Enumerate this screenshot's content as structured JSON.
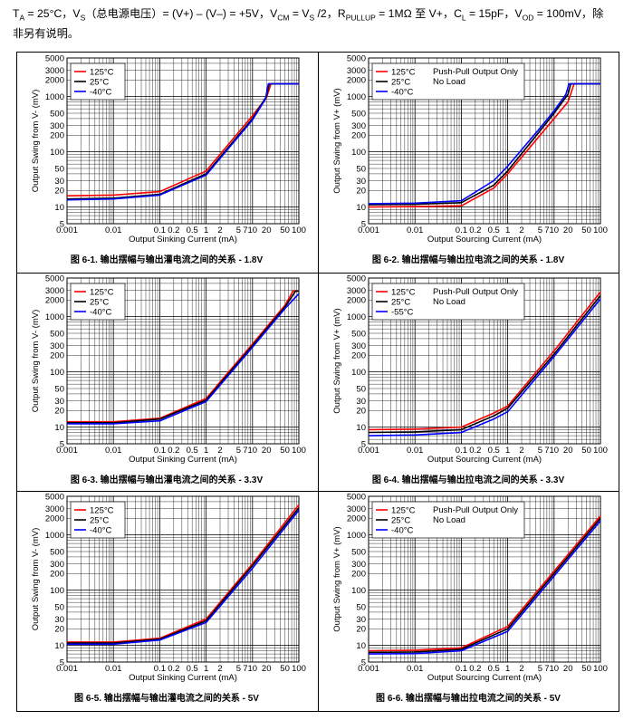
{
  "header": {
    "line1_pre": "T",
    "line1_sub1": "A",
    "line1_mid1": " = 25°C，V",
    "line1_sub2": "S",
    "line1_mid2": "（总电源电压）= (V+) – (V–) = +5V，V",
    "line1_sub3": "CM",
    "line1_mid3": " = V",
    "line1_sub4": "S",
    "line1_mid4": " /2，R",
    "line1_sub5": "PULLUP",
    "line1_mid5": " = 1MΩ 至 V+，C",
    "line1_sub6": "L",
    "line1_mid6": " = 15pF，V",
    "line1_sub7": "OD",
    "line1_mid7": " = 100mV，除",
    "line2": "非另有说明。"
  },
  "colors": {
    "series_125": "#ff0000",
    "series_25": "#000000",
    "series_m40": "#0000ff"
  },
  "chart_data": [
    {
      "type": "line",
      "caption": "图 6-1. 输出摆幅与输出灌电流之间的关系 - 1.8V",
      "xlabel": "Output Sinking Current (mA)",
      "ylabel": "Output Swing from V- (mV)",
      "x_scale": "log",
      "y_scale": "log",
      "xlim": [
        0.001,
        100
      ],
      "ylim": [
        5,
        5000
      ],
      "x_ticks": [
        "0.001",
        "0.01",
        "0.1",
        "0.2",
        "0.5",
        "1",
        "2",
        "5",
        "7",
        "10",
        "20",
        "50",
        "100"
      ],
      "y_ticks": [
        "5",
        "10",
        "20",
        "30",
        "50",
        "100",
        "200",
        "300",
        "500",
        "1000",
        "2000",
        "3000",
        "5000"
      ],
      "grid": true,
      "legend_position": "top-left",
      "legend_extra": [],
      "series": [
        {
          "name": "125°C",
          "color": "#ff0000",
          "x": [
            0.001,
            0.01,
            0.1,
            1,
            10,
            20,
            25,
            100
          ],
          "y": [
            16,
            16.5,
            19,
            45,
            450,
            950,
            1700,
            1700
          ]
        },
        {
          "name": "25°C",
          "color": "#000000",
          "x": [
            0.001,
            0.01,
            0.1,
            1,
            10,
            20,
            23,
            100
          ],
          "y": [
            14,
            14.5,
            17,
            40,
            400,
            1000,
            1700,
            1700
          ]
        },
        {
          "name": "-40°C",
          "color": "#0000ff",
          "x": [
            0.001,
            0.01,
            0.1,
            1,
            10,
            19,
            22,
            100
          ],
          "y": [
            13.5,
            14,
            16.5,
            38,
            380,
            900,
            1700,
            1700
          ]
        }
      ]
    },
    {
      "type": "line",
      "caption": "图 6-2. 输出摆幅与输出拉电流之间的关系 - 1.8V",
      "xlabel": "Output Sourcing Current (mA)",
      "ylabel": "Output Swing from V+ (mV)",
      "x_scale": "log",
      "y_scale": "log",
      "xlim": [
        0.001,
        100
      ],
      "ylim": [
        5,
        5000
      ],
      "x_ticks": [
        "0.001",
        "0.01",
        "0.1",
        "0.2",
        "0.5",
        "1",
        "2",
        "5",
        "7",
        "10",
        "20",
        "50",
        "100"
      ],
      "y_ticks": [
        "5",
        "10",
        "20",
        "30",
        "50",
        "100",
        "200",
        "300",
        "500",
        "1000",
        "2000",
        "3000",
        "5000"
      ],
      "grid": true,
      "legend_position": "top-left",
      "legend_extra": [
        "Push-Pull Output Only",
        "No Load"
      ],
      "series": [
        {
          "name": "125°C",
          "color": "#ff0000",
          "x": [
            0.001,
            0.01,
            0.1,
            0.5,
            1,
            5,
            10,
            20,
            27,
            100
          ],
          "y": [
            10,
            10.2,
            10.5,
            22,
            40,
            200,
            400,
            800,
            1700,
            1700
          ]
        },
        {
          "name": "25°C",
          "color": "#000000",
          "x": [
            0.001,
            0.01,
            0.1,
            0.5,
            1,
            5,
            10,
            20,
            23,
            100
          ],
          "y": [
            11,
            11.2,
            12,
            25,
            45,
            240,
            500,
            1100,
            1700,
            1700
          ]
        },
        {
          "name": "-40°C",
          "color": "#0000ff",
          "x": [
            0.001,
            0.01,
            0.1,
            0.5,
            1,
            5,
            10,
            18,
            21,
            100
          ],
          "y": [
            11.5,
            11.8,
            13,
            30,
            55,
            270,
            550,
            1100,
            1700,
            1700
          ]
        }
      ]
    },
    {
      "type": "line",
      "caption": "图 6-3. 输出摆幅与输出灌电流之间的关系 - 3.3V",
      "xlabel": "Output Sinking Current (mA)",
      "ylabel": "Output Swing from V- (mV)",
      "x_scale": "log",
      "y_scale": "log",
      "xlim": [
        0.001,
        100
      ],
      "ylim": [
        5,
        5000
      ],
      "x_ticks": [
        "0.001",
        "0.01",
        "0.1",
        "0.2",
        "0.5",
        "1",
        "2",
        "5",
        "7",
        "10",
        "20",
        "50",
        "100"
      ],
      "y_ticks": [
        "5",
        "10",
        "20",
        "30",
        "50",
        "100",
        "200",
        "300",
        "500",
        "1000",
        "2000",
        "3000",
        "5000"
      ],
      "grid": true,
      "legend_position": "top-left",
      "legend_extra": [],
      "series": [
        {
          "name": "125°C",
          "color": "#ff0000",
          "x": [
            0.001,
            0.01,
            0.1,
            1,
            10,
            50,
            75,
            100
          ],
          "y": [
            12.5,
            12.5,
            14.5,
            33,
            320,
            1600,
            2900,
            2900
          ]
        },
        {
          "name": "25°C",
          "color": "#000000",
          "x": [
            0.001,
            0.01,
            0.1,
            1,
            10,
            50,
            85,
            100
          ],
          "y": [
            12,
            12,
            14,
            31,
            300,
            1500,
            2900,
            2900
          ]
        },
        {
          "name": "-40°C",
          "color": "#0000ff",
          "x": [
            0.001,
            0.01,
            0.1,
            1,
            10,
            50,
            100
          ],
          "y": [
            11.5,
            11.5,
            13,
            29,
            280,
            1400,
            2600
          ]
        }
      ]
    },
    {
      "type": "line",
      "caption": "图 6-4. 输出摆幅与输出拉电流之间的关系 - 3.3V",
      "xlabel": "Output Sourcing Current (mA)",
      "ylabel": "Output Swing from V+ (mV)",
      "x_scale": "log",
      "y_scale": "log",
      "xlim": [
        0.001,
        100
      ],
      "ylim": [
        5,
        5000
      ],
      "x_ticks": [
        "0.001",
        "0.01",
        "0.1",
        "0.2",
        "0.5",
        "1",
        "2",
        "5",
        "7",
        "10",
        "20",
        "50",
        "100"
      ],
      "y_ticks": [
        "5",
        "10",
        "20",
        "30",
        "50",
        "100",
        "200",
        "300",
        "500",
        "1000",
        "2000",
        "3000",
        "5000"
      ],
      "grid": true,
      "legend_position": "top-left",
      "legend_extra": [
        "Push-Pull Output Only",
        "No Load"
      ],
      "series": [
        {
          "name": "125°C",
          "color": "#ff0000",
          "x": [
            0.001,
            0.01,
            0.1,
            0.5,
            1,
            10,
            100
          ],
          "y": [
            9,
            9.2,
            10,
            18,
            24,
            240,
            2800
          ]
        },
        {
          "name": "25°C",
          "color": "#000000",
          "x": [
            0.001,
            0.01,
            0.1,
            0.5,
            1,
            10,
            100
          ],
          "y": [
            8,
            8.2,
            9,
            16,
            22,
            210,
            2400
          ]
        },
        {
          "name": "-55°C",
          "color": "#0000ff",
          "x": [
            0.001,
            0.01,
            0.1,
            0.5,
            1,
            10,
            100
          ],
          "y": [
            7,
            7.2,
            8,
            14,
            19,
            190,
            2100
          ]
        }
      ]
    },
    {
      "type": "line",
      "caption": "图 6-5. 输出摆幅与输出灌电流之间的关系 - 5V",
      "xlabel": "Output Sinking Current (mA)",
      "ylabel": "Output Swing from V- (mV)",
      "x_scale": "log",
      "y_scale": "log",
      "xlim": [
        0.001,
        100
      ],
      "ylim": [
        5,
        5000
      ],
      "x_ticks": [
        "0.001",
        "0.01",
        "0.1",
        "0.2",
        "0.5",
        "1",
        "2",
        "5",
        "7",
        "10",
        "20",
        "50",
        "100"
      ],
      "y_ticks": [
        "5",
        "10",
        "20",
        "30",
        "50",
        "100",
        "200",
        "300",
        "500",
        "1000",
        "2000",
        "3000",
        "5000"
      ],
      "grid": true,
      "legend_position": "top-left",
      "legend_extra": [],
      "series": [
        {
          "name": "125°C",
          "color": "#ff0000",
          "x": [
            0.001,
            0.01,
            0.1,
            1,
            10,
            100
          ],
          "y": [
            11.5,
            11.5,
            13.5,
            30,
            300,
            3500
          ]
        },
        {
          "name": "25°C",
          "color": "#000000",
          "x": [
            0.001,
            0.01,
            0.1,
            1,
            10,
            100
          ],
          "y": [
            11,
            11,
            13,
            28,
            280,
            3100
          ]
        },
        {
          "name": "-40°C",
          "color": "#0000ff",
          "x": [
            0.001,
            0.01,
            0.1,
            1,
            10,
            100
          ],
          "y": [
            10.5,
            10.5,
            12.5,
            26,
            250,
            2800
          ]
        }
      ]
    },
    {
      "type": "line",
      "caption": "图 6-6. 输出摆幅与输出拉电流之间的关系 - 5V",
      "xlabel": "Output Sourcing Current (mA)",
      "ylabel": "Output Swing from V+ (mV)",
      "x_scale": "log",
      "y_scale": "log",
      "xlim": [
        0.001,
        100
      ],
      "ylim": [
        5,
        5000
      ],
      "x_ticks": [
        "0.001",
        "0.01",
        "0.1",
        "0.2",
        "0.5",
        "1",
        "2",
        "5",
        "7",
        "10",
        "20",
        "50",
        "100"
      ],
      "y_ticks": [
        "5",
        "10",
        "20",
        "30",
        "50",
        "100",
        "200",
        "300",
        "500",
        "1000",
        "2000",
        "3000",
        "5000"
      ],
      "grid": true,
      "legend_position": "top-left",
      "legend_extra": [
        "Push-Pull Output Only",
        "No Load"
      ],
      "series": [
        {
          "name": "125°C",
          "color": "#ff0000",
          "x": [
            0.001,
            0.01,
            0.1,
            1,
            10,
            100
          ],
          "y": [
            8,
            8.2,
            9,
            22,
            220,
            2200
          ]
        },
        {
          "name": "25°C",
          "color": "#000000",
          "x": [
            0.001,
            0.01,
            0.1,
            1,
            10,
            100
          ],
          "y": [
            7.5,
            7.6,
            8.5,
            20,
            200,
            2000
          ]
        },
        {
          "name": "-40°C",
          "color": "#0000ff",
          "x": [
            0.001,
            0.01,
            0.1,
            1,
            10,
            100
          ],
          "y": [
            7,
            7.1,
            8,
            18,
            180,
            1800
          ]
        }
      ]
    }
  ]
}
